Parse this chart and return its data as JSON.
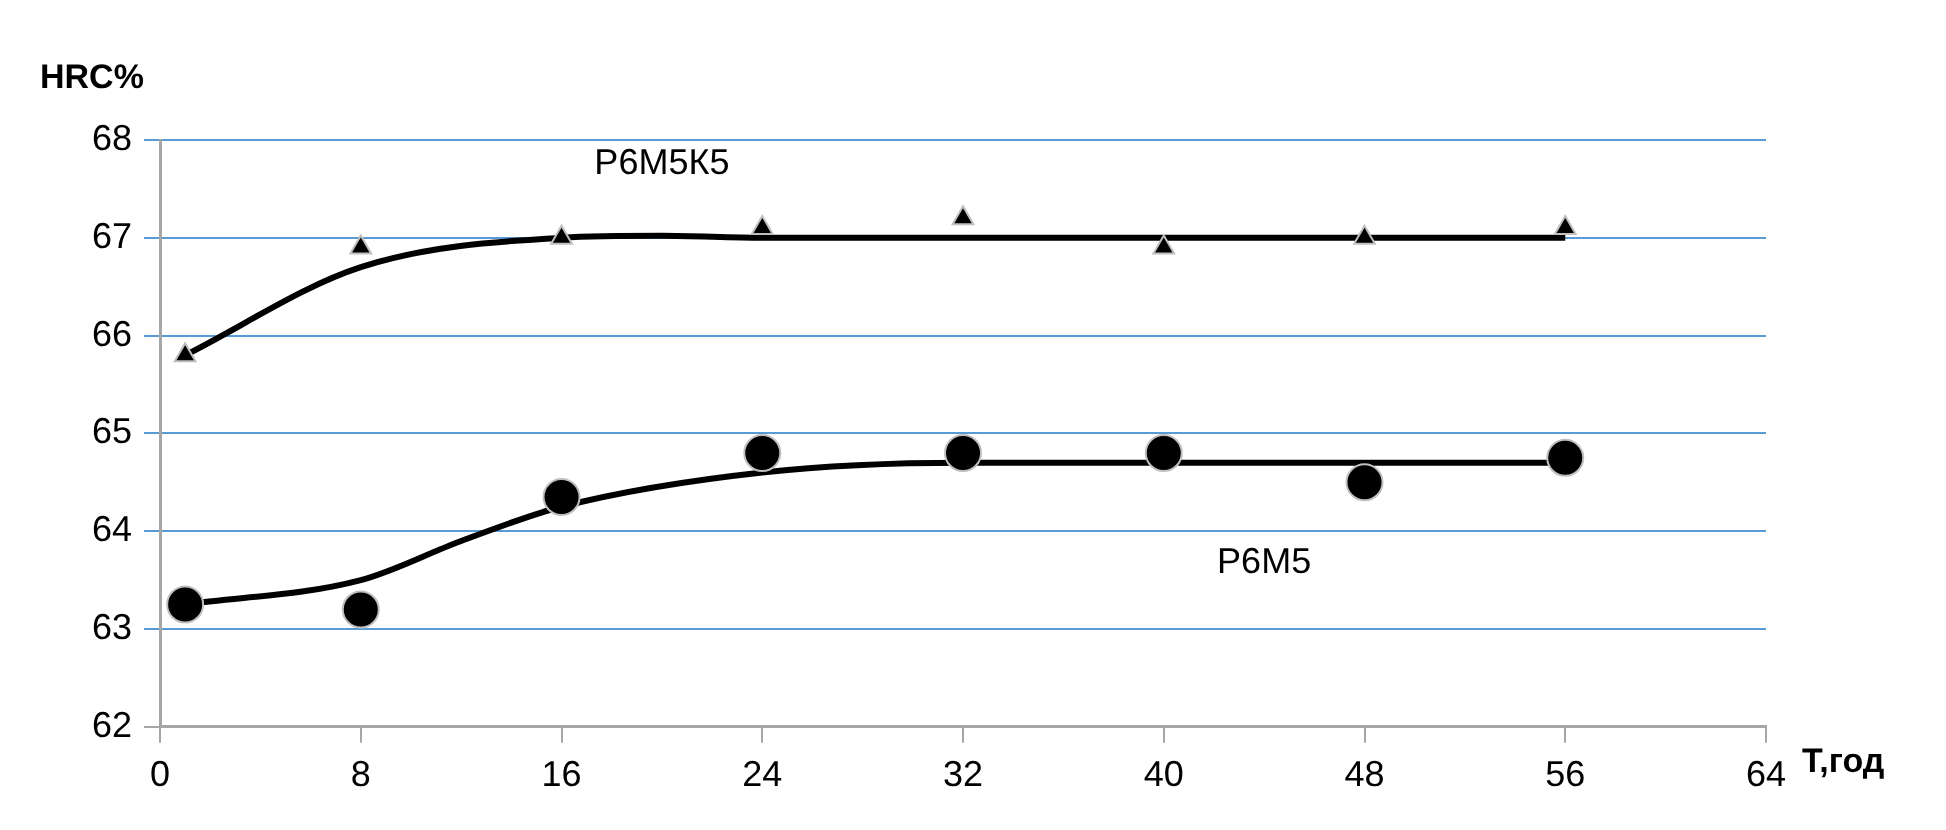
{
  "chart_data": {
    "type": "scatter",
    "xlabel": "Т,год",
    "ylabel": "HRC%",
    "xlim": [
      0,
      64
    ],
    "xticks": [
      0,
      8,
      16,
      24,
      32,
      40,
      48,
      56,
      64
    ],
    "ylim": [
      62,
      68
    ],
    "yticks": [
      62,
      63,
      64,
      65,
      66,
      67,
      68
    ],
    "grid": "y",
    "legend": false,
    "series": [
      {
        "name": "Р6М5К5",
        "type": "scatter",
        "marker": "triangle",
        "color": "#000000",
        "x": [
          1,
          8,
          16,
          24,
          32,
          40,
          48,
          56
        ],
        "values": [
          65.8,
          66.9,
          67.0,
          67.1,
          67.2,
          66.9,
          67.0,
          67.1
        ]
      },
      {
        "name": "Р6М5",
        "type": "scatter",
        "marker": "circle",
        "color": "#000000",
        "x": [
          1,
          8,
          16,
          24,
          32,
          40,
          48,
          56
        ],
        "values": [
          63.25,
          63.2,
          64.35,
          64.8,
          64.8,
          64.8,
          64.5,
          64.75
        ]
      },
      {
        "type": "line",
        "marker": "none",
        "line_style": "solid",
        "color": "#000000",
        "x": [
          1,
          8,
          16,
          20,
          24,
          32,
          40,
          48,
          56
        ],
        "values": [
          65.8,
          66.7,
          67.0,
          67.02,
          67.0,
          67.0,
          67.0,
          67.0,
          67.0
        ]
      },
      {
        "type": "line",
        "marker": "none",
        "line_style": "solid",
        "color": "#000000",
        "x": [
          1,
          8,
          12,
          16,
          24,
          32,
          40,
          48,
          56
        ],
        "values": [
          63.25,
          63.5,
          63.9,
          64.25,
          64.6,
          64.7,
          64.7,
          64.7,
          64.7
        ]
      }
    ]
  }
}
